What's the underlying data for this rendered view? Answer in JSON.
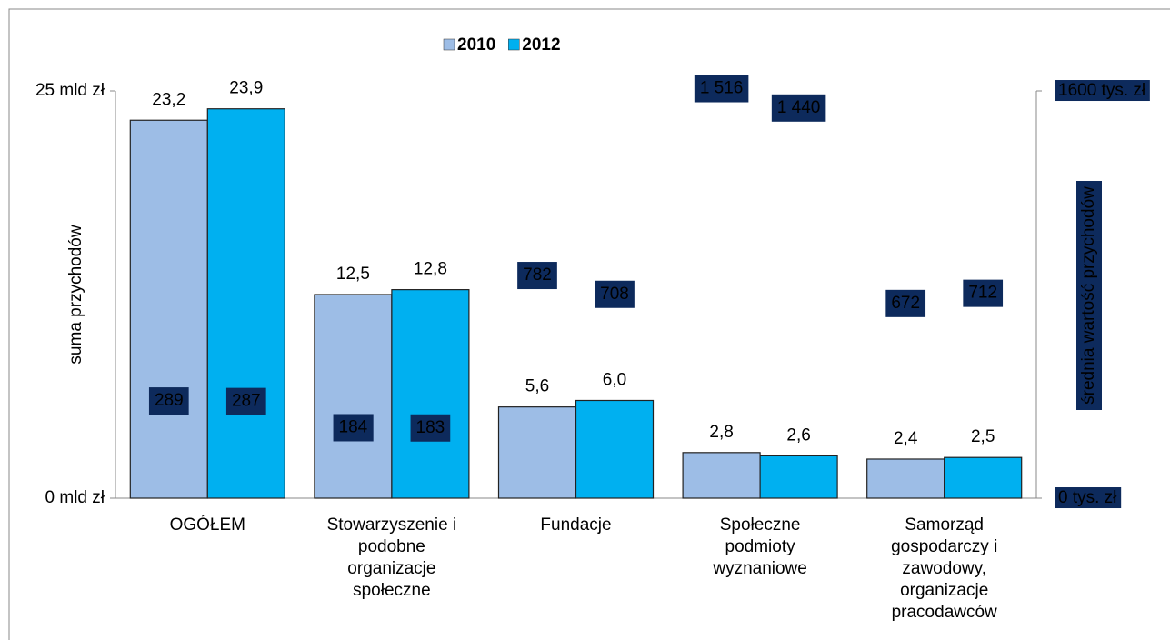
{
  "chart_data": {
    "type": "bar",
    "categories": [
      "OGÓŁEM",
      "Stowarzyszenie i podobne organizacje społeczne",
      "Fundacje",
      "Społeczne podmioty wyznaniowe",
      "Samorząd gospodarczy i zawodowy, organizacje pracodawców"
    ],
    "series": [
      {
        "name": "2010",
        "color": "#9dbde6",
        "values": [
          23.2,
          12.5,
          5.6,
          2.8,
          2.4
        ],
        "value_labels": [
          "23,2",
          "12,5",
          "5,6",
          "2,8",
          "2,4"
        ]
      },
      {
        "name": "2012",
        "color": "#00b0f0",
        "values": [
          23.9,
          12.8,
          6.0,
          2.6,
          2.5
        ],
        "value_labels": [
          "23,9",
          "12,8",
          "6,0",
          "2,6",
          "2,5"
        ]
      },
      {
        "axis": "y2",
        "color": "#0d2a5c",
        "values": [
          289,
          184,
          782,
          1516,
          672
        ],
        "value_labels": [
          "289",
          "184",
          "782",
          "1 516",
          "672"
        ]
      },
      {
        "axis": "y2",
        "color": "#0d2a5c",
        "values": [
          287,
          183,
          708,
          1440,
          712
        ],
        "value_labels": [
          "287",
          "183",
          "708",
          "1 440",
          "712"
        ]
      }
    ],
    "ylim": [
      0,
      25
    ],
    "yticks": [
      {
        "value": 0,
        "label": "0 mld zł"
      },
      {
        "value": 25,
        "label": "25 mld zł"
      }
    ],
    "y2lim": [
      0,
      1600
    ],
    "y2ticks": [
      {
        "value": 0,
        "label": "0 tys. zł"
      },
      {
        "value": 1600,
        "label": "1600 tys. zł"
      }
    ],
    "ylabel": "suma przychodów",
    "y2label": "średnia wartość przychodów",
    "legend": "top"
  }
}
